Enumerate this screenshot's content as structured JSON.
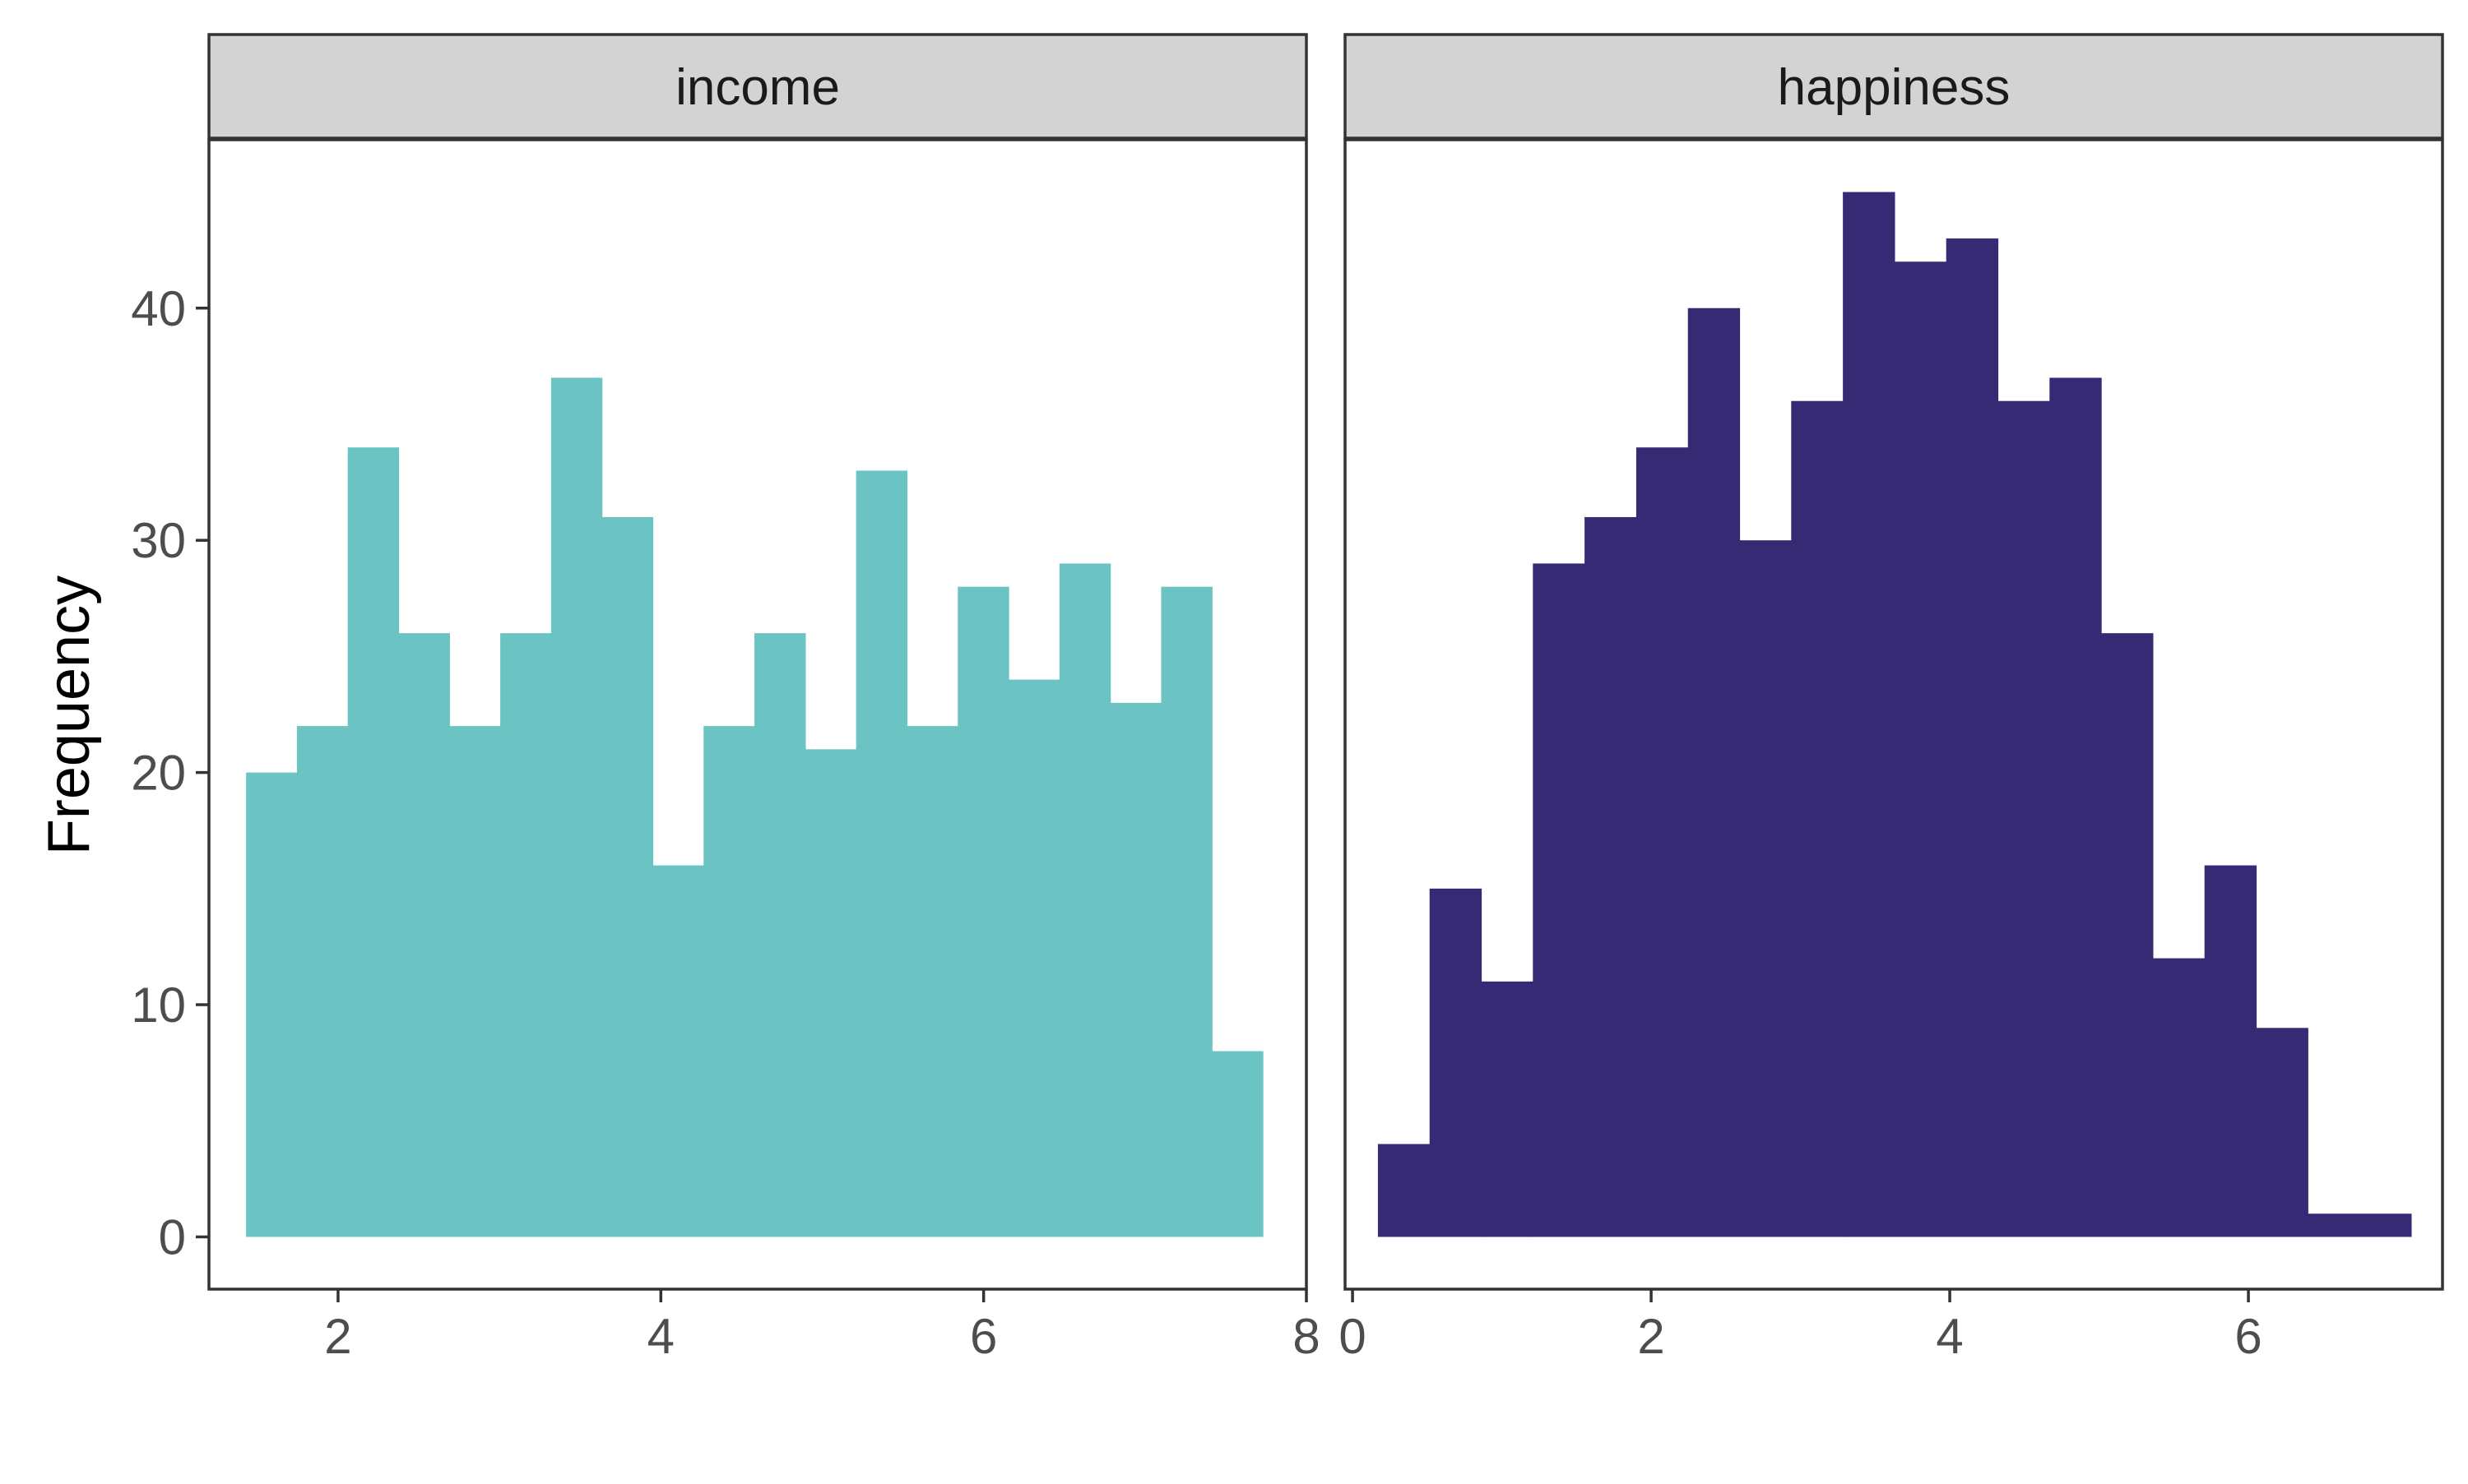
{
  "chart_data": [
    {
      "type": "bar",
      "panel": "income",
      "ylabel": "Frequency",
      "xlim": [
        1.2,
        8.0
      ],
      "ylim": [
        -2.25,
        47.25
      ],
      "xticks": [
        2,
        4,
        6,
        8
      ],
      "yticks": [
        0,
        10,
        20,
        30,
        40
      ],
      "bin_width": 0.315,
      "bins_start": 1.43,
      "values": [
        20,
        22,
        34,
        26,
        22,
        26,
        37,
        31,
        16,
        22,
        26,
        21,
        33,
        22,
        28,
        24,
        29,
        23,
        28,
        8
      ],
      "color": "#6BC3C3",
      "grid": false
    },
    {
      "type": "bar",
      "panel": "happiness",
      "xlim": [
        -0.05,
        7.3
      ],
      "ylim": [
        -2.25,
        47.25
      ],
      "xticks": [
        0,
        2,
        4,
        6
      ],
      "yticks": [
        0,
        10,
        20,
        30,
        40
      ],
      "bin_width": 0.346,
      "bins_start": 0.17,
      "values": [
        4,
        15,
        11,
        29,
        31,
        34,
        40,
        30,
        36,
        45,
        42,
        43,
        36,
        37,
        26,
        12,
        16,
        9,
        1,
        1
      ],
      "color": "#372A75",
      "grid": false
    }
  ],
  "shared": {
    "ylabel": "Frequency",
    "panel_labels": [
      "income",
      "happiness"
    ]
  }
}
